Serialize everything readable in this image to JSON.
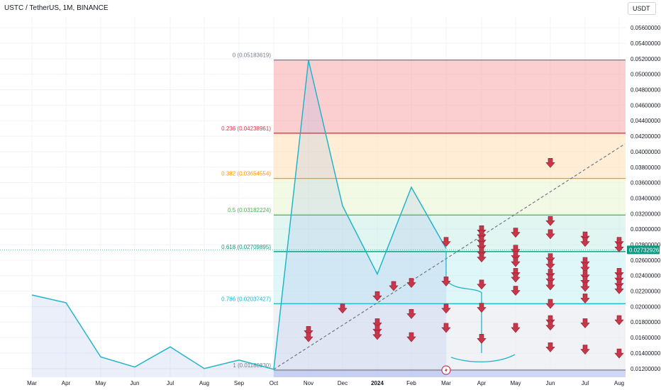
{
  "header": {
    "symbol": "USTC / TetherUS, 1M, BINANCE",
    "currency": "USDT"
  },
  "chart_data": {
    "type": "line",
    "title": "USTC / TetherUS, 1M, BINANCE",
    "y_range": [
      0.0115,
      0.0575
    ],
    "y_ticks": [
      "0.05600000",
      "0.05400000",
      "0.05200000",
      "0.05000000",
      "0.04800000",
      "0.04600000",
      "0.04400000",
      "0.04200000",
      "0.04000000",
      "0.03800000",
      "0.03600000",
      "0.03400000",
      "0.03200000",
      "0.03000000",
      "0.02800000",
      "0.02600000",
      "0.02400000",
      "0.02200000",
      "0.02000000",
      "0.01800000",
      "0.01600000",
      "0.01400000",
      "0.01200000"
    ],
    "x_labels": [
      "Mar",
      "Apr",
      "May",
      "Jun",
      "Jul",
      "Aug",
      "Sep",
      "Oct",
      "Nov",
      "Dec",
      "2024",
      "Feb",
      "Mar",
      "Apr",
      "May",
      "Jun",
      "Jul",
      "Aug"
    ],
    "price_series": {
      "x": [
        "Mar",
        "Apr",
        "May",
        "Jun",
        "Jul",
        "Aug",
        "Sep",
        "Oct",
        "Nov",
        "Dec",
        "2024",
        "Feb",
        "Mar"
      ],
      "values": [
        0.0215,
        0.0205,
        0.0135,
        0.0122,
        0.0148,
        0.012,
        0.0131,
        0.0119,
        0.0518,
        0.033,
        0.0242,
        0.0354,
        0.0275
      ]
    },
    "current_price": "0.02732926",
    "fib_levels": [
      {
        "ratio": "0",
        "value": 0.05183619,
        "label": "0 (0.05183619)",
        "color": "#787b86",
        "fill": "#f7a5a8"
      },
      {
        "ratio": "0.236",
        "value": 0.04238961,
        "label": "0.236 (0.04238961)",
        "color": "#e3314a",
        "fill": "#ffe0b3"
      },
      {
        "ratio": "0.382",
        "value": 0.03654554,
        "label": "0.382 (0.03654554)",
        "color": "#ff9800",
        "fill": "#e8f5d0"
      },
      {
        "ratio": "0.5",
        "value": 0.03182224,
        "label": "0.5 (0.03182224)",
        "color": "#4caf50",
        "fill": "#c8ece5"
      },
      {
        "ratio": "0.618",
        "value": 0.02709895,
        "label": "0.618 (0.02709895)",
        "color": "#089981",
        "fill": "#c4f0f2"
      },
      {
        "ratio": "0.786",
        "value": 0.02037427,
        "label": "0.786 (0.02037427)",
        "color": "#00bcd4",
        "fill": "#e5e7ec"
      },
      {
        "ratio": "1",
        "value": 0.0118083,
        "label": "1 (0.01180830)",
        "color": "#787b86",
        "fill": "#c5cef5"
      }
    ],
    "projection_path": [
      {
        "x": "Mar",
        "value": 0.0272
      },
      {
        "x": "Mar",
        "value": 0.0265
      },
      {
        "x": "Mar",
        "value": 0.0235
      },
      {
        "x": "Apr",
        "value": 0.0218
      },
      {
        "x": "Apr",
        "value": 0.0198
      },
      {
        "x": "Apr",
        "value": 0.014
      }
    ],
    "trend_line": {
      "from": {
        "x": "Oct",
        "value": 0.0119
      },
      "to": {
        "x": "Aug",
        "value": 0.041
      }
    },
    "sell_arrows": [
      {
        "x": "Nov",
        "value": 0.0168
      },
      {
        "x": "Nov",
        "value": 0.016
      },
      {
        "x": "Dec",
        "value": 0.0197
      },
      {
        "x": "2024",
        "value": 0.0213
      },
      {
        "x": "2024",
        "value": 0.0178
      },
      {
        "x": "2024",
        "value": 0.017
      },
      {
        "x": "2024",
        "value": 0.0163
      },
      {
        "x": "Jan-Feb",
        "value": 0.0226
      },
      {
        "x": "Feb",
        "value": 0.023
      },
      {
        "x": "Feb",
        "value": 0.019
      },
      {
        "x": "Feb",
        "value": 0.016
      },
      {
        "x": "Mar",
        "value": 0.0283
      },
      {
        "x": "Mar",
        "value": 0.0232
      },
      {
        "x": "Mar",
        "value": 0.0197
      },
      {
        "x": "Mar",
        "value": 0.0172
      },
      {
        "x": "Apr",
        "value": 0.0298
      },
      {
        "x": "Apr",
        "value": 0.0292
      },
      {
        "x": "Apr",
        "value": 0.0285
      },
      {
        "x": "Apr",
        "value": 0.0278
      },
      {
        "x": "Apr",
        "value": 0.027
      },
      {
        "x": "Apr",
        "value": 0.0263
      },
      {
        "x": "Apr",
        "value": 0.0228
      },
      {
        "x": "Apr",
        "value": 0.0198
      },
      {
        "x": "Apr",
        "value": 0.0158
      },
      {
        "x": "May",
        "value": 0.0295
      },
      {
        "x": "May",
        "value": 0.0273
      },
      {
        "x": "May",
        "value": 0.0265
      },
      {
        "x": "May",
        "value": 0.0257
      },
      {
        "x": "May",
        "value": 0.0243
      },
      {
        "x": "May",
        "value": 0.0237
      },
      {
        "x": "May",
        "value": 0.022
      },
      {
        "x": "May",
        "value": 0.0172
      },
      {
        "x": "Jun",
        "value": 0.0385
      },
      {
        "x": "Jun",
        "value": 0.031
      },
      {
        "x": "Jun",
        "value": 0.0293
      },
      {
        "x": "Jun",
        "value": 0.0262
      },
      {
        "x": "Jun",
        "value": 0.0254
      },
      {
        "x": "Jun",
        "value": 0.0242
      },
      {
        "x": "Jun",
        "value": 0.0235
      },
      {
        "x": "Jun",
        "value": 0.0227
      },
      {
        "x": "Jun",
        "value": 0.0203
      },
      {
        "x": "Jun",
        "value": 0.0182
      },
      {
        "x": "Jun",
        "value": 0.0175
      },
      {
        "x": "Jun",
        "value": 0.0147
      },
      {
        "x": "Jul",
        "value": 0.029
      },
      {
        "x": "Jul",
        "value": 0.0283
      },
      {
        "x": "Jul",
        "value": 0.0257
      },
      {
        "x": "Jul",
        "value": 0.025
      },
      {
        "x": "Jul",
        "value": 0.024
      },
      {
        "x": "Jul",
        "value": 0.0233
      },
      {
        "x": "Jul",
        "value": 0.0225
      },
      {
        "x": "Jul",
        "value": 0.021
      },
      {
        "x": "Jul",
        "value": 0.0178
      },
      {
        "x": "Jul",
        "value": 0.0144
      },
      {
        "x": "Aug",
        "value": 0.0283
      },
      {
        "x": "Aug",
        "value": 0.0276
      },
      {
        "x": "Aug",
        "value": 0.0243
      },
      {
        "x": "Aug",
        "value": 0.0236
      },
      {
        "x": "Aug",
        "value": 0.0229
      },
      {
        "x": "Aug",
        "value": 0.0222
      },
      {
        "x": "Aug",
        "value": 0.0182
      },
      {
        "x": "Aug",
        "value": 0.0139
      }
    ],
    "colors": {
      "price_line": "#22b5c9",
      "arrow": "#c8364a",
      "current_price_badge": "#089981"
    },
    "grid": true
  }
}
